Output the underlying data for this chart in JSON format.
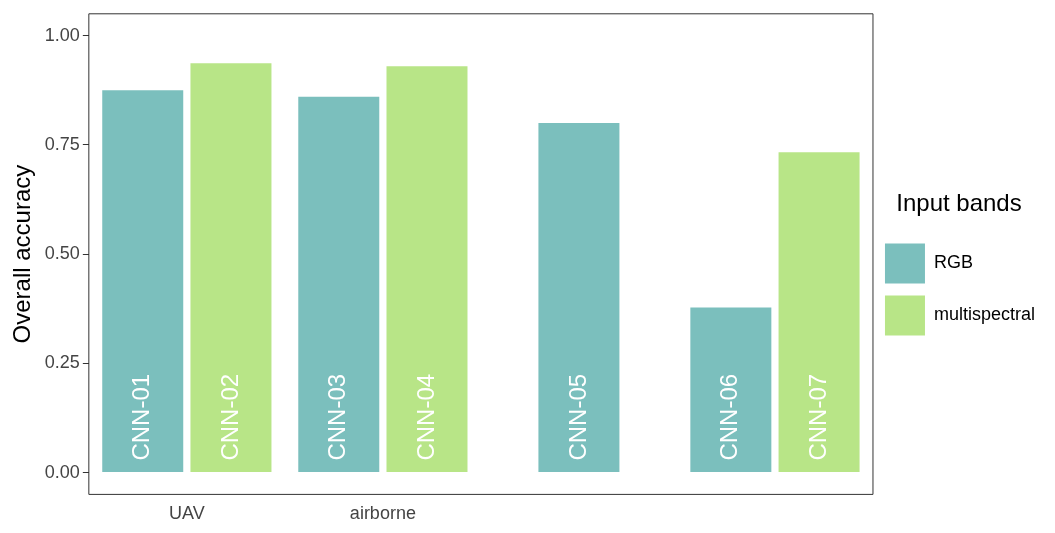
{
  "chart_data": {
    "type": "bar",
    "ylabel": "Overall accuracy",
    "legend_title": "Input bands",
    "legend": "right",
    "grid": false,
    "categories": [
      "UAV",
      "airborne",
      null,
      null
    ],
    "ylim": [
      -0.05,
      1.05
    ],
    "yticks": [
      {
        "value": 0,
        "label": "0.00"
      },
      {
        "value": 0.25,
        "label": "0.25"
      },
      {
        "value": 0.5,
        "label": "0.50"
      },
      {
        "value": 0.75,
        "label": "0.75"
      },
      {
        "value": 1,
        "label": "1.00"
      }
    ],
    "series": [
      {
        "name": "RGB",
        "color": "#7bbfbd",
        "values": [
          0.875,
          0.86,
          0.8,
          0.378
        ],
        "value_labels": [
          "CNN-01",
          "CNN-03",
          "CNN-05",
          "CNN-06"
        ]
      },
      {
        "name": "multispectral",
        "color": "#b8e587",
        "values": [
          0.937,
          0.93,
          null,
          0.733
        ],
        "value_labels": [
          "CNN-02",
          "CNN-04",
          null,
          "CNN-07"
        ]
      }
    ]
  }
}
